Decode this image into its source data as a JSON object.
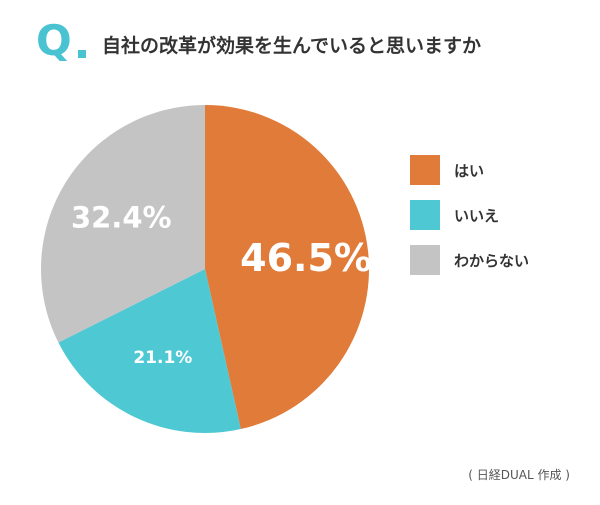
{
  "header": {
    "q_mark": "Q",
    "title": "自社の改革が効果を生んでいると思いますか",
    "accent_color": "#49c3d1"
  },
  "chart_data": {
    "type": "pie",
    "title": "自社の改革が効果を生んでいると思いますか",
    "unit": "%",
    "slices": [
      {
        "label": "はい",
        "value": 46.5,
        "display": "46.5%",
        "color": "#e07b39"
      },
      {
        "label": "いいえ",
        "value": 21.1,
        "display": "21.1%",
        "color": "#4ec8d3"
      },
      {
        "label": "わからない",
        "value": 32.4,
        "display": "32.4%",
        "color": "#c4c4c4"
      }
    ],
    "legend_position": "right"
  },
  "source": "( 日経DUAL 作成 )"
}
